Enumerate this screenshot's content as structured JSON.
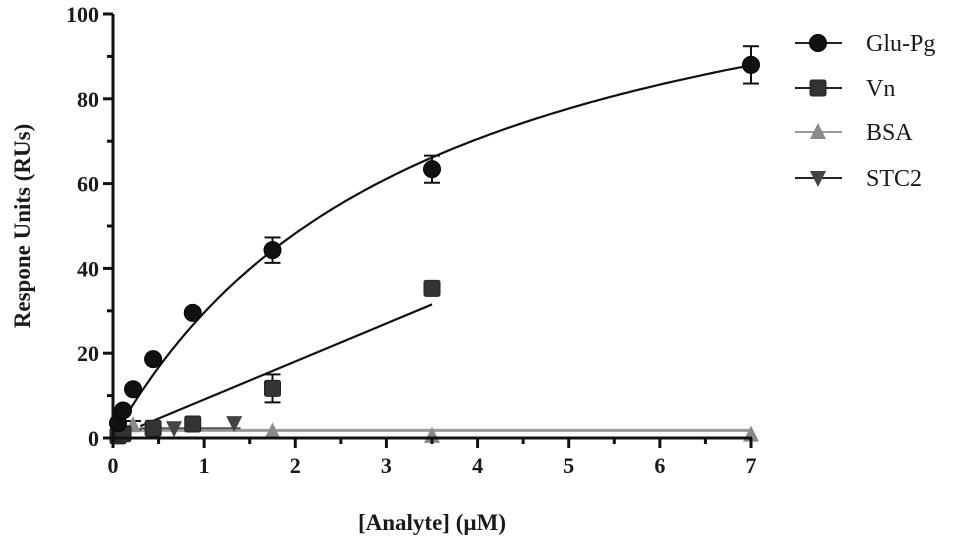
{
  "chart_data": {
    "type": "scatter",
    "title": "",
    "xlabel": "[Analyte] (µM)",
    "ylabel": "Respone Units  (RUs)",
    "xlim": [
      0,
      7
    ],
    "ylim": [
      0,
      100
    ],
    "x_ticks": [
      "0",
      "1",
      "2",
      "3",
      "4",
      "5",
      "6",
      "7"
    ],
    "y_ticks": [
      "0",
      "20",
      "40",
      "60",
      "80",
      "100"
    ],
    "x_minor_step": 0.5,
    "y_minor_step": 10,
    "grid": false,
    "legend_position": "right",
    "series": [
      {
        "name": "Glu-Pg",
        "marker": "circle",
        "color": "#111111",
        "x": [
          0.055,
          0.11,
          0.22,
          0.44,
          0.875,
          1.75,
          3.5,
          7.0
        ],
        "y": [
          3.5,
          6.5,
          11.5,
          18.6,
          29.5,
          44.3,
          63.4,
          88.0
        ],
        "error": [
          0.5,
          0.5,
          0.5,
          0.6,
          0.6,
          3.0,
          3.2,
          4.4
        ],
        "fit": {
          "model": "one-site binding",
          "Bmax": 131,
          "Kd": 3.43,
          "x_range": [
            0,
            7
          ]
        }
      },
      {
        "name": "Vn",
        "marker": "square",
        "color": "#333333",
        "x": [
          0.055,
          0.11,
          0.44,
          0.875,
          1.75,
          3.5
        ],
        "y": [
          0.5,
          1.0,
          2.3,
          3.3,
          11.7,
          35.3
        ],
        "error": [
          0.3,
          0.3,
          0.5,
          1.5,
          3.3,
          0.8
        ],
        "fit": {
          "model": "linear",
          "points": [
            [
              0.3,
              2.8
            ],
            [
              3.5,
              31.5
            ]
          ]
        }
      },
      {
        "name": "BSA",
        "marker": "triangle-up",
        "color": "#8a8a8a",
        "x": [
          0.055,
          0.22,
          1.75,
          3.5,
          7.0
        ],
        "y": [
          0.8,
          3.0,
          1.5,
          0.5,
          0.8
        ],
        "error": [
          0.3,
          1.0,
          0.3,
          0.3,
          0.3
        ],
        "fit": {
          "model": "constant",
          "value": 1.8
        }
      },
      {
        "name": "STC2",
        "marker": "triangle-down",
        "color": "#444444",
        "x": [
          0.055,
          0.67,
          1.33
        ],
        "y": [
          0.5,
          2.3,
          3.5
        ],
        "error": [
          0.3,
          0.3,
          0.3
        ],
        "fit": {
          "model": "constant",
          "value": 2.3,
          "x_range": [
            0.3,
            1.4
          ]
        }
      }
    ]
  },
  "legend": {
    "items": [
      {
        "label": "Glu-Pg"
      },
      {
        "label": "Vn"
      },
      {
        "label": "BSA"
      },
      {
        "label": "STC2"
      }
    ]
  }
}
